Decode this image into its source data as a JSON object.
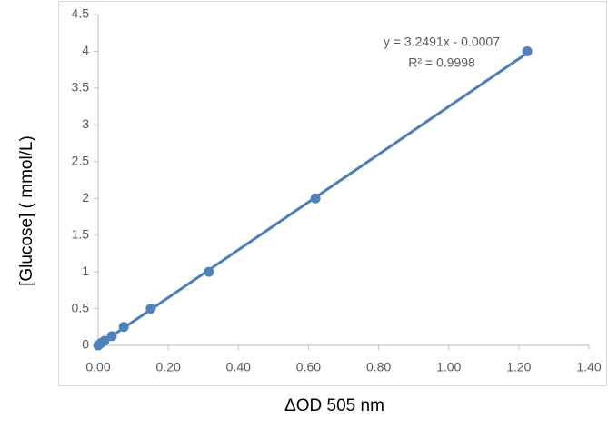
{
  "chart_data": {
    "type": "scatter",
    "x_label": "ΔOD 505 nm",
    "y_label": "[Glucose] ( mmol/L)",
    "annotations": [
      "y = 3.2491x - 0.0007",
      "R² = 0.9998"
    ],
    "series": [
      {
        "name": "[Glucose]",
        "color": "#4f81bd",
        "x": [
          0,
          0.008,
          0.018,
          0.039,
          0.073,
          0.15,
          0.316,
          0.62,
          1.224
        ],
        "values": [
          0,
          0.03125,
          0.0625,
          0.125,
          0.25,
          0.5,
          1,
          2,
          4
        ]
      }
    ],
    "trendline": {
      "slope": 3.2491,
      "intercept": -0.0007,
      "color": "#4a7ebb"
    },
    "xlim": [
      0,
      1.4
    ],
    "xticks": [
      {
        "value": 0,
        "label": "0.00"
      },
      {
        "value": 0.2,
        "label": "0.20"
      },
      {
        "value": 0.4,
        "label": "0.40"
      },
      {
        "value": 0.6,
        "label": "0.60"
      },
      {
        "value": 0.8,
        "label": "0.80"
      },
      {
        "value": 1.0,
        "label": "1.00"
      },
      {
        "value": 1.2,
        "label": "1.20"
      },
      {
        "value": 1.4,
        "label": "1.40"
      }
    ],
    "ylim": [
      0,
      4.5
    ],
    "yticks": [
      0,
      0.5,
      1,
      1.5,
      2,
      2.5,
      3,
      3.5,
      4,
      4.5
    ],
    "grid": false
  }
}
